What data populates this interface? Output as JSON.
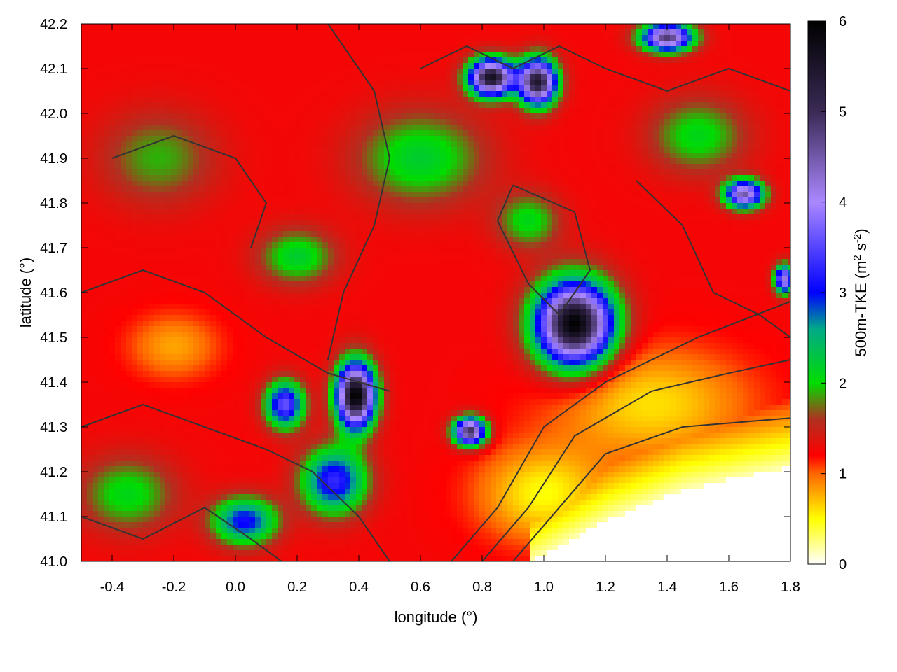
{
  "chart_data": {
    "type": "heatmap",
    "xlabel": "longitude (°)",
    "ylabel": "latitude (°)",
    "colorbar_label": "500m-TKE (m² s⁻²)",
    "colorbar_label_parts": {
      "main": "500m-TKE (m",
      "sup1": "2",
      "mid": " s",
      "sup2": "-2",
      "end": ")"
    },
    "xlim": [
      -0.5,
      1.8
    ],
    "ylim": [
      41.0,
      42.2
    ],
    "clim": [
      0,
      6
    ],
    "x_ticks": [
      -0.4,
      -0.2,
      0.0,
      0.2,
      0.4,
      0.6,
      0.8,
      1.0,
      1.2,
      1.4,
      1.6,
      1.8
    ],
    "x_tick_labels": [
      "-0.4",
      "-0.2",
      "0.0",
      "0.2",
      "0.4",
      "0.6",
      "0.8",
      "1.0",
      "1.2",
      "1.4",
      "1.6",
      "1.8"
    ],
    "y_ticks": [
      41.0,
      41.1,
      41.2,
      41.3,
      41.4,
      41.5,
      41.6,
      41.7,
      41.8,
      41.9,
      42.0,
      42.1,
      42.2
    ],
    "y_tick_labels": [
      "41.0",
      "41.1",
      "41.2",
      "41.3",
      "41.4",
      "41.5",
      "41.6",
      "41.7",
      "41.8",
      "41.9",
      "42.0",
      "42.1",
      "42.2"
    ],
    "colorbar_ticks": [
      0,
      1,
      2,
      3,
      4,
      5,
      6
    ],
    "colorbar_tick_labels": [
      "0",
      "1",
      "2",
      "3",
      "4",
      "5",
      "6"
    ],
    "colormap": [
      {
        "value": 0,
        "color": "#ffffff"
      },
      {
        "value": 0.5,
        "color": "#ffff00"
      },
      {
        "value": 1.0,
        "color": "#ff6600"
      },
      {
        "value": 1.2,
        "color": "#ff0000"
      },
      {
        "value": 1.6,
        "color": "#b03020"
      },
      {
        "value": 2.0,
        "color": "#00dd00"
      },
      {
        "value": 2.6,
        "color": "#00aa88"
      },
      {
        "value": 3.0,
        "color": "#0000ff"
      },
      {
        "value": 4.0,
        "color": "#aa88ff"
      },
      {
        "value": 5.0,
        "color": "#3a2a55"
      },
      {
        "value": 6.0,
        "color": "#000000"
      }
    ],
    "background_value": 1.25,
    "features": [
      {
        "kind": "blob",
        "lon": 1.1,
        "lat": 41.53,
        "rlon": 0.12,
        "rlat": 0.09,
        "peak": 6.0
      },
      {
        "kind": "blob",
        "lon": 0.39,
        "lat": 41.37,
        "rlon": 0.06,
        "rlat": 0.07,
        "peak": 6.0
      },
      {
        "kind": "blob",
        "lon": 0.83,
        "lat": 42.08,
        "rlon": 0.07,
        "rlat": 0.04,
        "peak": 5.6
      },
      {
        "kind": "blob",
        "lon": 0.98,
        "lat": 42.07,
        "rlon": 0.06,
        "rlat": 0.05,
        "peak": 5.4
      },
      {
        "kind": "blob",
        "lon": 1.4,
        "lat": 42.17,
        "rlon": 0.08,
        "rlat": 0.03,
        "peak": 4.8
      },
      {
        "kind": "blob",
        "lon": 1.65,
        "lat": 41.82,
        "rlon": 0.06,
        "rlat": 0.03,
        "peak": 4.5
      },
      {
        "kind": "blob",
        "lon": 0.76,
        "lat": 41.29,
        "rlon": 0.05,
        "rlat": 0.03,
        "peak": 5.0
      },
      {
        "kind": "blob",
        "lon": 0.32,
        "lat": 41.18,
        "rlon": 0.1,
        "rlat": 0.07,
        "peak": 3.3
      },
      {
        "kind": "blob",
        "lon": 0.03,
        "lat": 41.09,
        "rlon": 0.1,
        "rlat": 0.05,
        "peak": 3.1
      },
      {
        "kind": "blob",
        "lon": 0.16,
        "lat": 41.35,
        "rlon": 0.06,
        "rlat": 0.05,
        "peak": 3.6
      },
      {
        "kind": "blob",
        "lon": 1.78,
        "lat": 41.63,
        "rlon": 0.03,
        "rlat": 0.03,
        "peak": 4.2
      },
      {
        "kind": "blob",
        "lon": 0.6,
        "lat": 41.9,
        "rlon": 0.2,
        "rlat": 0.1,
        "peak": 2.2
      },
      {
        "kind": "blob",
        "lon": -0.25,
        "lat": 41.9,
        "rlon": 0.18,
        "rlat": 0.1,
        "peak": 1.9
      },
      {
        "kind": "blob",
        "lon": 0.2,
        "lat": 41.68,
        "rlon": 0.12,
        "rlat": 0.06,
        "peak": 2.2
      },
      {
        "kind": "blob",
        "lon": 0.95,
        "lat": 41.76,
        "rlon": 0.1,
        "rlat": 0.06,
        "peak": 2.1
      },
      {
        "kind": "blob",
        "lon": -0.35,
        "lat": 41.15,
        "rlon": 0.15,
        "rlat": 0.08,
        "peak": 2.1
      },
      {
        "kind": "blob",
        "lon": 1.5,
        "lat": 41.95,
        "rlon": 0.15,
        "rlat": 0.08,
        "peak": 2.1
      },
      {
        "kind": "blob",
        "lon": -0.2,
        "lat": 41.48,
        "rlon": 0.14,
        "rlat": 0.07,
        "peak": 0.8
      },
      {
        "kind": "blob",
        "lon": 1.35,
        "lat": 41.35,
        "rlon": 0.3,
        "rlat": 0.12,
        "peak": 0.6
      },
      {
        "kind": "blob",
        "lon": 1.0,
        "lat": 41.15,
        "rlon": 0.2,
        "rlat": 0.1,
        "peak": 0.5
      }
    ],
    "coast": {
      "points": [
        [
          0.96,
          41.0
        ],
        [
          1.2,
          41.09
        ],
        [
          1.45,
          41.16
        ],
        [
          1.8,
          41.21
        ]
      ],
      "sea_value": 0.0
    },
    "contours": [
      [
        [
          0.7,
          41.0
        ],
        [
          0.85,
          41.12
        ],
        [
          1.0,
          41.3
        ],
        [
          1.2,
          41.4
        ],
        [
          1.5,
          41.5
        ],
        [
          1.8,
          41.58
        ]
      ],
      [
        [
          0.8,
          41.0
        ],
        [
          0.95,
          41.12
        ],
        [
          1.1,
          41.28
        ],
        [
          1.35,
          41.38
        ],
        [
          1.6,
          41.42
        ],
        [
          1.8,
          41.45
        ]
      ],
      [
        [
          0.9,
          41.0
        ],
        [
          1.05,
          41.12
        ],
        [
          1.2,
          41.24
        ],
        [
          1.45,
          41.3
        ],
        [
          1.8,
          41.32
        ]
      ],
      [
        [
          -0.5,
          41.6
        ],
        [
          -0.3,
          41.65
        ],
        [
          -0.1,
          41.6
        ],
        [
          0.1,
          41.5
        ],
        [
          0.3,
          41.42
        ],
        [
          0.5,
          41.38
        ]
      ],
      [
        [
          -0.5,
          41.3
        ],
        [
          -0.3,
          41.35
        ],
        [
          -0.1,
          41.3
        ],
        [
          0.1,
          41.25
        ],
        [
          0.25,
          41.2
        ],
        [
          0.4,
          41.1
        ],
        [
          0.5,
          41.0
        ]
      ],
      [
        [
          0.3,
          42.2
        ],
        [
          0.45,
          42.05
        ],
        [
          0.5,
          41.9
        ],
        [
          0.45,
          41.75
        ],
        [
          0.35,
          41.6
        ],
        [
          0.3,
          41.45
        ]
      ],
      [
        [
          0.9,
          41.84
        ],
        [
          1.1,
          41.78
        ],
        [
          1.15,
          41.65
        ],
        [
          1.05,
          41.55
        ],
        [
          0.95,
          41.62
        ],
        [
          0.85,
          41.76
        ],
        [
          0.9,
          41.84
        ]
      ],
      [
        [
          -0.4,
          41.9
        ],
        [
          -0.2,
          41.95
        ],
        [
          0.0,
          41.9
        ],
        [
          0.1,
          41.8
        ],
        [
          0.05,
          41.7
        ]
      ],
      [
        [
          0.6,
          42.1
        ],
        [
          0.75,
          42.15
        ],
        [
          0.9,
          42.1
        ],
        [
          1.05,
          42.15
        ],
        [
          1.2,
          42.1
        ],
        [
          1.4,
          42.05
        ],
        [
          1.6,
          42.1
        ],
        [
          1.8,
          42.05
        ]
      ],
      [
        [
          1.3,
          41.85
        ],
        [
          1.45,
          41.75
        ],
        [
          1.55,
          41.6
        ],
        [
          1.7,
          41.55
        ],
        [
          1.8,
          41.5
        ]
      ],
      [
        [
          -0.5,
          41.1
        ],
        [
          -0.3,
          41.05
        ],
        [
          -0.1,
          41.12
        ],
        [
          0.05,
          41.05
        ],
        [
          0.15,
          41.0
        ]
      ]
    ]
  }
}
